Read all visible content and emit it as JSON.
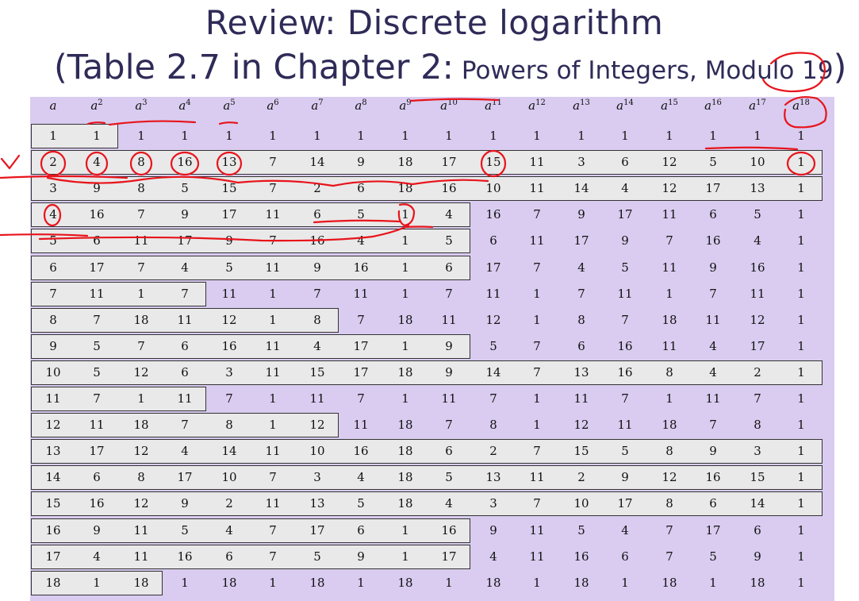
{
  "title": "Review: Discrete logarithm",
  "subtitle_main": "(Table 2.7 in Chapter 2:",
  "subtitle_small": " Powers of Integers, Modulo 19",
  "subtitle_close": ")",
  "table": {
    "header_base": [
      "a",
      "a",
      "a",
      "a",
      "a",
      "a",
      "a",
      "a",
      "a",
      "a",
      "a",
      "a",
      "a",
      "a",
      "a",
      "a",
      "a",
      "a"
    ],
    "header_exp": [
      "",
      "2",
      "3",
      "4",
      "5",
      "6",
      "7",
      "8",
      "9",
      "10",
      "11",
      "12",
      "13",
      "14",
      "15",
      "16",
      "17",
      "18"
    ],
    "rows": [
      [
        "1",
        "1",
        "1",
        "1",
        "1",
        "1",
        "1",
        "1",
        "1",
        "1",
        "1",
        "1",
        "1",
        "1",
        "1",
        "1",
        "1",
        "1"
      ],
      [
        "2",
        "4",
        "8",
        "16",
        "13",
        "7",
        "14",
        "9",
        "18",
        "17",
        "15",
        "11",
        "3",
        "6",
        "12",
        "5",
        "10",
        "1"
      ],
      [
        "3",
        "9",
        "8",
        "5",
        "15",
        "7",
        "2",
        "6",
        "18",
        "16",
        "10",
        "11",
        "14",
        "4",
        "12",
        "17",
        "13",
        "1"
      ],
      [
        "4",
        "16",
        "7",
        "9",
        "17",
        "11",
        "6",
        "5",
        "1",
        "4",
        "16",
        "7",
        "9",
        "17",
        "11",
        "6",
        "5",
        "1"
      ],
      [
        "5",
        "6",
        "11",
        "17",
        "9",
        "7",
        "16",
        "4",
        "1",
        "5",
        "6",
        "11",
        "17",
        "9",
        "7",
        "16",
        "4",
        "1"
      ],
      [
        "6",
        "17",
        "7",
        "4",
        "5",
        "11",
        "9",
        "16",
        "1",
        "6",
        "17",
        "7",
        "4",
        "5",
        "11",
        "9",
        "16",
        "1"
      ],
      [
        "7",
        "11",
        "1",
        "7",
        "11",
        "1",
        "7",
        "11",
        "1",
        "7",
        "11",
        "1",
        "7",
        "11",
        "1",
        "7",
        "11",
        "1"
      ],
      [
        "8",
        "7",
        "18",
        "11",
        "12",
        "1",
        "8",
        "7",
        "18",
        "11",
        "12",
        "1",
        "8",
        "7",
        "18",
        "11",
        "12",
        "1"
      ],
      [
        "9",
        "5",
        "7",
        "6",
        "16",
        "11",
        "4",
        "17",
        "1",
        "9",
        "5",
        "7",
        "6",
        "16",
        "11",
        "4",
        "17",
        "1"
      ],
      [
        "10",
        "5",
        "12",
        "6",
        "3",
        "11",
        "15",
        "17",
        "18",
        "9",
        "14",
        "7",
        "13",
        "16",
        "8",
        "4",
        "2",
        "1"
      ],
      [
        "11",
        "7",
        "1",
        "11",
        "7",
        "1",
        "11",
        "7",
        "1",
        "11",
        "7",
        "1",
        "11",
        "7",
        "1",
        "11",
        "7",
        "1"
      ],
      [
        "12",
        "11",
        "18",
        "7",
        "8",
        "1",
        "12",
        "11",
        "18",
        "7",
        "8",
        "1",
        "12",
        "11",
        "18",
        "7",
        "8",
        "1"
      ],
      [
        "13",
        "17",
        "12",
        "4",
        "14",
        "11",
        "10",
        "16",
        "18",
        "6",
        "2",
        "7",
        "15",
        "5",
        "8",
        "9",
        "3",
        "1"
      ],
      [
        "14",
        "6",
        "8",
        "17",
        "10",
        "7",
        "3",
        "4",
        "18",
        "5",
        "13",
        "11",
        "2",
        "9",
        "12",
        "16",
        "15",
        "1"
      ],
      [
        "15",
        "16",
        "12",
        "9",
        "2",
        "11",
        "13",
        "5",
        "18",
        "4",
        "3",
        "7",
        "10",
        "17",
        "8",
        "6",
        "14",
        "1"
      ],
      [
        "16",
        "9",
        "11",
        "5",
        "4",
        "7",
        "17",
        "6",
        "1",
        "16",
        "9",
        "11",
        "5",
        "4",
        "7",
        "17",
        "6",
        "1"
      ],
      [
        "17",
        "4",
        "11",
        "16",
        "6",
        "7",
        "5",
        "9",
        "1",
        "17",
        "4",
        "11",
        "16",
        "6",
        "7",
        "5",
        "9",
        "1"
      ],
      [
        "18",
        "1",
        "18",
        "1",
        "18",
        "1",
        "18",
        "1",
        "18",
        "1",
        "18",
        "1",
        "18",
        "1",
        "18",
        "1",
        "18",
        "1"
      ]
    ],
    "row_period": [
      1,
      18,
      18,
      9,
      9,
      9,
      3,
      6,
      9,
      18,
      3,
      6,
      18,
      18,
      18,
      9,
      9,
      2
    ]
  },
  "colors": {
    "title": "#2f2b58",
    "table_bg": "#d9ccf0",
    "box_bg": "#e9e9e9",
    "annotation": "#e8141b"
  }
}
